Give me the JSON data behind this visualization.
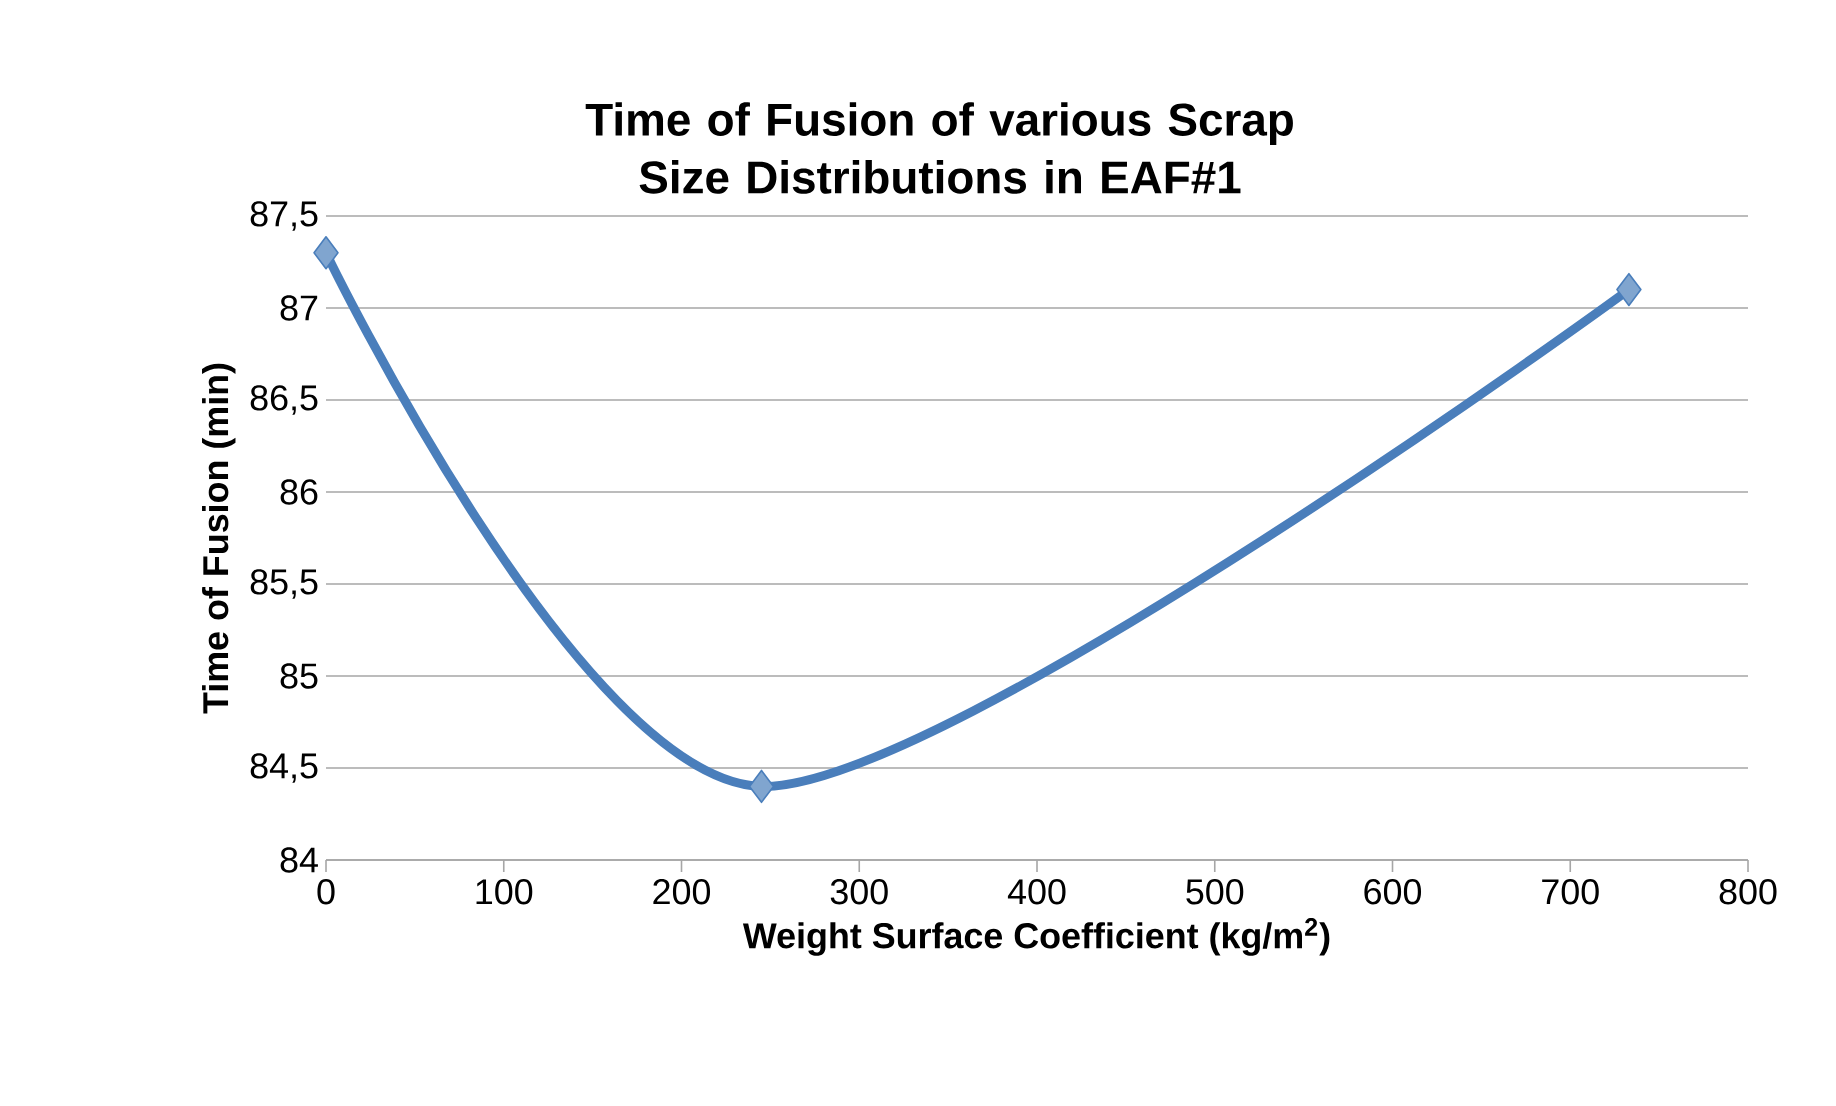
{
  "chart_data": {
    "type": "line",
    "title": "Time of Fusion of various Scrap Size Distributions in EAF#1",
    "xlabel": "Weight Surface Coefficient (kg/m$^{2}$)",
    "ylabel": "Time of Fusion (min)",
    "x": [
      0,
      245,
      733
    ],
    "series": [
      {
        "color": "#4a7ebb",
        "values": [
          87.3,
          84.4,
          87.1
        ]
      }
    ],
    "xlim": [
      0,
      800
    ],
    "xticks": [
      0,
      100,
      200,
      300,
      400,
      500,
      600,
      700,
      800
    ],
    "ylim": [
      84,
      87.5
    ],
    "yticks": [
      84,
      {
        "value": 84.5,
        "label": "84,5"
      },
      85,
      {
        "value": 85.5,
        "label": "85,5"
      },
      86,
      {
        "value": 86.5,
        "label": "86,5"
      },
      87,
      {
        "value": 87.5,
        "label": "87,5"
      }
    ],
    "grid": "y",
    "marker": "diamond",
    "line_style": "solid"
  }
}
